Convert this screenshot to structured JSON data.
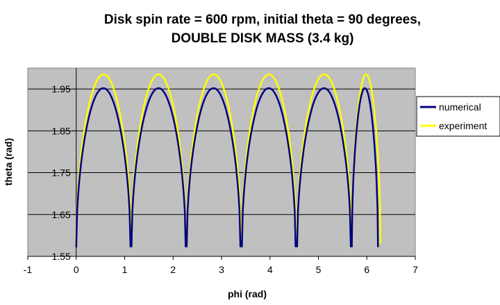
{
  "chart_data": {
    "type": "line",
    "title_line1": "Disk spin rate = 600 rpm, initial theta = 90 degrees,",
    "title_line2": "DOUBLE DISK MASS (3.4 kg)",
    "xlabel": "phi (rad)",
    "ylabel": "theta (rad)",
    "xlim": [
      -1,
      7
    ],
    "ylim": [
      1.55,
      2.0
    ],
    "xticks": [
      "-1",
      "0",
      "1",
      "2",
      "3",
      "4",
      "5",
      "6",
      "7"
    ],
    "yticks": [
      "1.55",
      "1.65",
      "1.75",
      "1.85",
      "1.95"
    ],
    "grid": "horizontal",
    "legend_position": "right",
    "plot_background": "#c0c0c0",
    "series": [
      {
        "name": "numerical",
        "color": "#000080",
        "arches": [
          [
            0.0,
            1.12
          ],
          [
            1.14,
            2.26
          ],
          [
            2.28,
            3.39
          ],
          [
            3.42,
            4.53
          ],
          [
            4.56,
            5.67
          ],
          [
            5.69,
            6.23
          ]
        ],
        "peak": 1.952,
        "base": 1.572
      },
      {
        "name": "experiment",
        "color": "#ffff00",
        "arches": [
          [
            0.0,
            1.13
          ],
          [
            1.14,
            2.26
          ],
          [
            2.28,
            3.4
          ],
          [
            3.42,
            4.54
          ],
          [
            4.56,
            5.68
          ],
          [
            5.69,
            6.28
          ]
        ],
        "peak": 1.985,
        "base": 1.58
      }
    ]
  }
}
